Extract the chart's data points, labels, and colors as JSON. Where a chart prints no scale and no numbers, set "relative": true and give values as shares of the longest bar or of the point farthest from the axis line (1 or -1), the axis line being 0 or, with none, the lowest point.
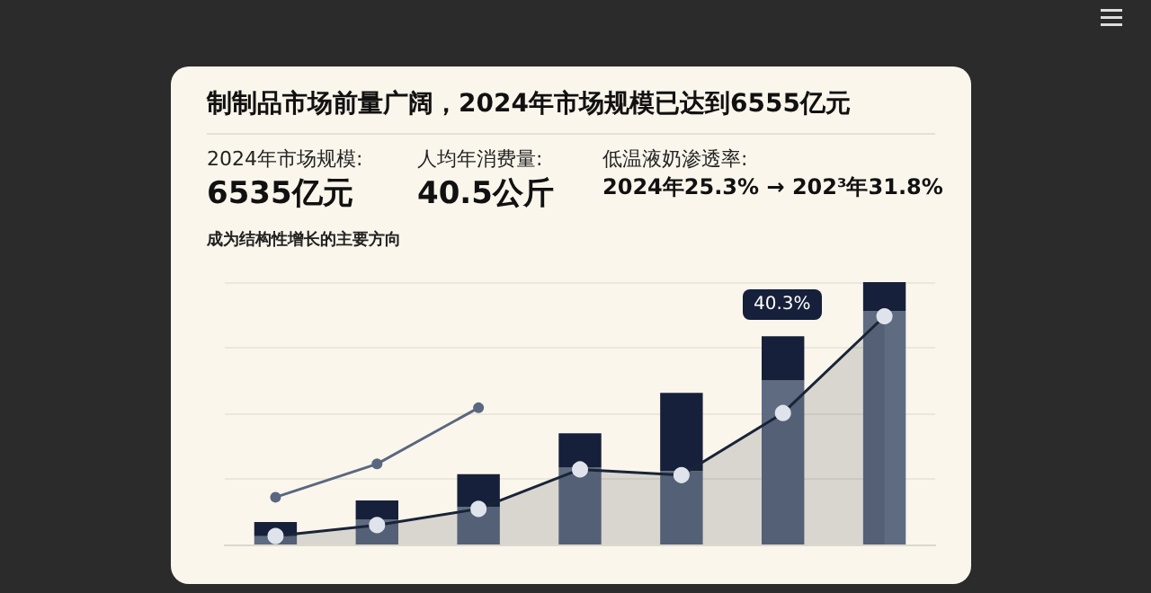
{
  "chart_data": [
    {
      "type": "bar",
      "title": "制制品市场前量广阔，2024年市场规模已达到6555亿元",
      "annotations": [
        "2024年市场规模:",
        "6535亿元",
        "成为结构性增长的主要方向",
        "人均年消费量:",
        "40.5公斤",
        "低温液奶渗透率:",
        "2024年25.3% → 202³年31.8%",
        "40.3%"
      ],
      "categories": [
        null,
        null,
        null,
        null,
        null,
        null,
        null
      ],
      "relative": true,
      "stacked": true,
      "grid": "y",
      "series": [
        {
          "color": "#5f6b80",
          "values": [
            0.032,
            0.094,
            0.144,
            0.293,
            0.28,
            0.625,
            0.89
          ]
        },
        {
          "color": "#16203a",
          "values": [
            0.054,
            0.074,
            0.124,
            0.131,
            0.298,
            0.169,
            0.11
          ]
        }
      ]
    },
    {
      "type": "area",
      "categories": [
        null,
        null,
        null,
        null,
        null,
        null,
        null
      ],
      "relative": true,
      "marker": "circle",
      "series": [
        {
          "color": "#1a2437",
          "values": [
            0.037,
            0.085,
            0.156,
            0.329,
            0.304,
            0.576,
            1
          ]
        },
        {
          "type": "line",
          "color": "#5a6780",
          "values": [
            0.207,
            0.353,
            0.599,
            null,
            null,
            null,
            null
          ]
        }
      ]
    }
  ]
}
